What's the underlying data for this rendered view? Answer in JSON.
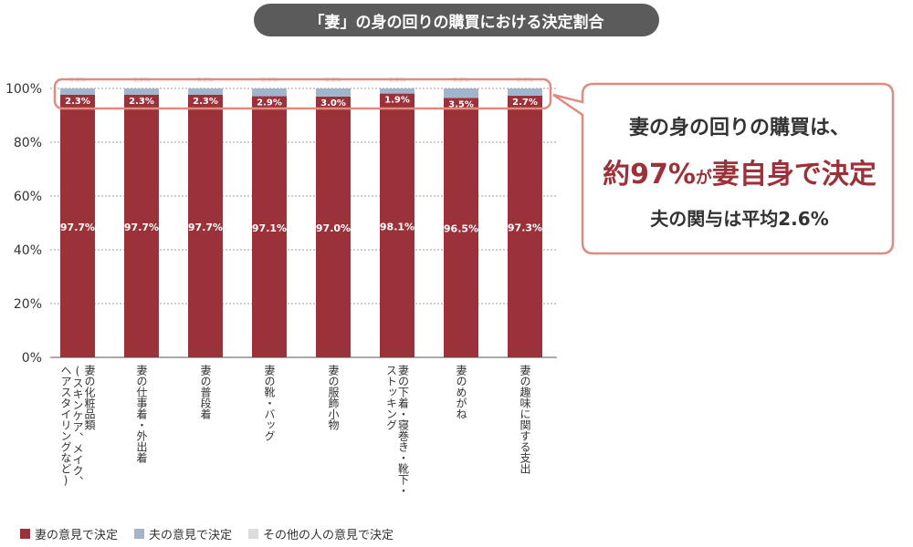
{
  "chart_data": {
    "type": "bar",
    "stacked": true,
    "title": "「妻」の身の回りの購買における決定割合",
    "ylim": [
      0,
      100
    ],
    "yticks": [
      "0%",
      "20%",
      "40%",
      "60%",
      "80%",
      "100%"
    ],
    "grid": true,
    "legend_position": "bottom-left",
    "categories": [
      "妻の化粧品類(スキンケア、メイク、ヘアスタイリングなど)",
      "妻の仕事着・外出着",
      "妻の普段着",
      "妻の靴・バッグ",
      "妻の服飾小物",
      "妻の下着・寝巻き・靴下・ストッキング",
      "妻のめがね",
      "妻の趣味に関する支出"
    ],
    "category_lines": [
      [
        "妻の化粧品類",
        "(スキンケア、メイク、",
        "ヘアスタイリングなど)"
      ],
      [
        "妻の仕事着・外出着"
      ],
      [
        "妻の普段着"
      ],
      [
        "妻の靴・バッグ"
      ],
      [
        "妻の服飾小物"
      ],
      [
        "妻の下着・寝巻き・靴下・",
        "ストッキング"
      ],
      [
        "妻のめがね"
      ],
      [
        "妻の趣味に関する支出"
      ]
    ],
    "series": [
      {
        "name": "妻の意見で決定",
        "color": "#9b3139",
        "values": [
          97.7,
          97.7,
          97.7,
          97.1,
          97.0,
          98.1,
          96.5,
          97.3
        ],
        "labels": [
          "97.7%",
          "97.7%",
          "97.7%",
          "97.1%",
          "97.0%",
          "98.1%",
          "96.5%",
          "97.3%"
        ]
      },
      {
        "name": "夫の意見で決定",
        "color": "#a3b5cc",
        "values": [
          2.3,
          2.3,
          2.3,
          2.9,
          3.0,
          1.9,
          3.5,
          2.7
        ],
        "labels": [
          "2.3%",
          "2.3%",
          "2.3%",
          "2.9%",
          "3.0%",
          "1.9%",
          "3.5%",
          "2.7%"
        ]
      },
      {
        "name": "その他の人の意見で決定",
        "color": "#dcdcdc",
        "values": [
          0.0,
          0.0,
          0.0,
          0.0,
          0.0,
          0.0,
          0.0,
          0.0
        ],
        "labels": [
          "0.0%",
          "0.0%",
          "0.0%",
          "0.0%",
          "0.0%",
          "0.0%",
          "0.0%",
          "0.0%"
        ]
      }
    ],
    "annotation": {
      "line1": "妻の身の回りの購買は、",
      "line2_main": "約97%",
      "line2_small": "が",
      "line2_end": "妻自身で決定",
      "line3": "夫の関与は平均2.6%"
    }
  },
  "colors": {
    "accent": "#9b3139",
    "callout_border": "#e08a80",
    "title_bg": "#5b5b5b"
  }
}
